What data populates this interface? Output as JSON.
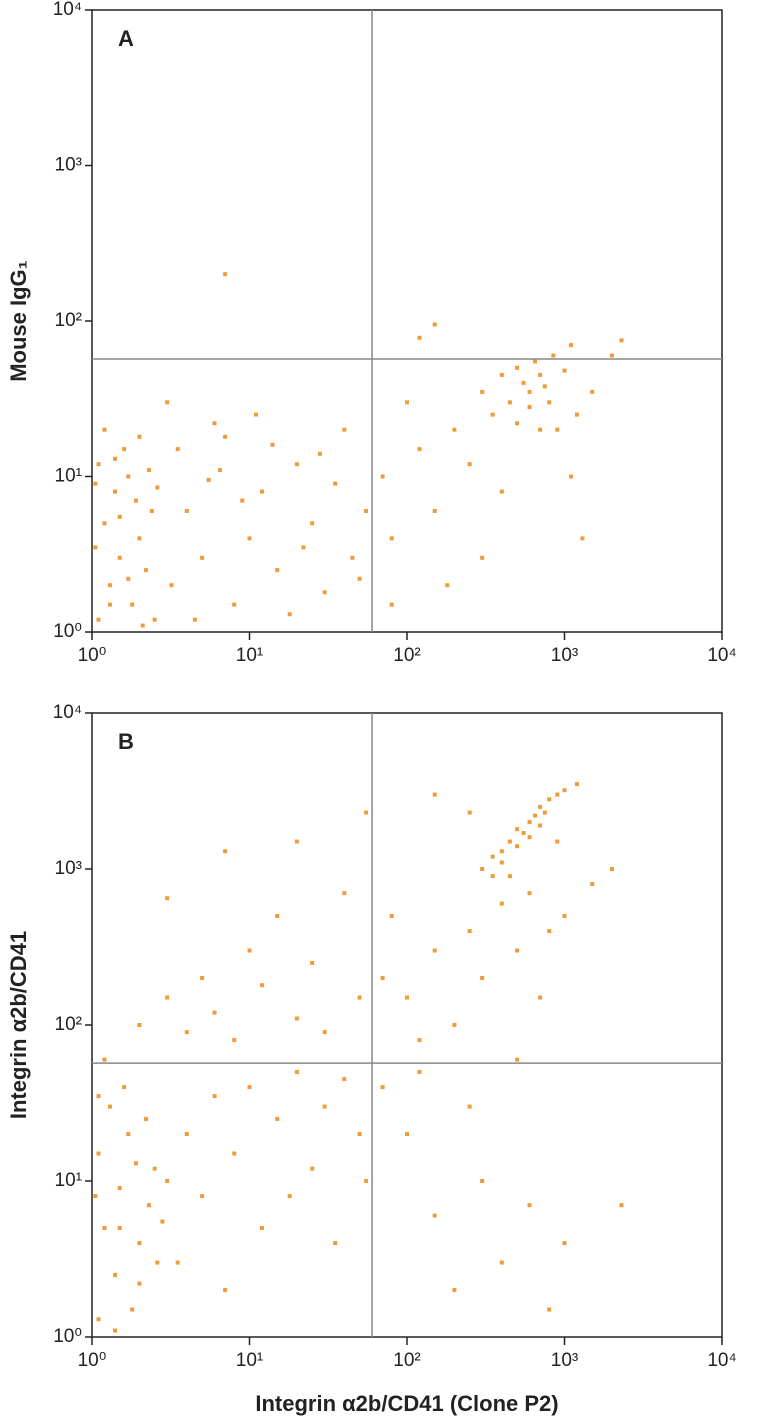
{
  "chart_data": [
    {
      "type": "scatter",
      "title": "A",
      "ylabel": "Mouse IgG₁",
      "color": "#ef9b3a",
      "log_scale": true,
      "xlim": [
        1,
        10000
      ],
      "ylim": [
        1,
        10000
      ],
      "xticks": [
        {
          "value": 1,
          "label": "10⁰"
        },
        {
          "value": 10,
          "label": "10¹"
        },
        {
          "value": 100,
          "label": "10²"
        },
        {
          "value": 1000,
          "label": "10³"
        },
        {
          "value": 10000,
          "label": "10⁴"
        }
      ],
      "yticks": [
        {
          "value": 1,
          "label": "10⁰"
        },
        {
          "value": 10,
          "label": "10¹"
        },
        {
          "value": 100,
          "label": "10²"
        },
        {
          "value": 1000,
          "label": "10³"
        },
        {
          "value": 10000,
          "label": "10⁴"
        }
      ],
      "quadrant": {
        "x": 60,
        "y": 57
      },
      "x": [
        1.1,
        1.3,
        1.5,
        1.2,
        1.8,
        2,
        1.4,
        1.1,
        1.7,
        2.2,
        2.4,
        1.6,
        1.2,
        2,
        1.9,
        1.3,
        2.5,
        1.05,
        1.5,
        2.3,
        1.05,
        1.7,
        2.1,
        1.4,
        2.6,
        3.2,
        4,
        5,
        6.5,
        8,
        10,
        12,
        15,
        20,
        25,
        30,
        35,
        45,
        55,
        3.5,
        4.5,
        7,
        9,
        18,
        28,
        40,
        50,
        11,
        3,
        6,
        22,
        14,
        5.5,
        70,
        80,
        100,
        120,
        150,
        200,
        250,
        300,
        350,
        400,
        450,
        500,
        550,
        600,
        650,
        700,
        750,
        800,
        900,
        1000,
        1200,
        1500,
        2000,
        400,
        300,
        180,
        1100,
        1300,
        80,
        700,
        600,
        500,
        850,
        1100,
        7,
        150,
        2300,
        120
      ],
      "y": [
        1.2,
        2,
        3,
        5,
        1.5,
        4,
        8,
        12,
        10,
        2.5,
        6,
        15,
        20,
        18,
        7,
        1.5,
        1.2,
        3.5,
        5.5,
        11,
        9,
        2.2,
        1.1,
        13,
        8.5,
        2,
        6,
        3,
        11,
        1.5,
        4,
        8,
        2.5,
        12,
        5,
        1.8,
        9,
        3,
        6,
        15,
        1.2,
        18,
        7,
        1.3,
        14,
        20,
        2.2,
        25,
        30,
        22,
        3.5,
        16,
        9.5,
        10,
        4,
        30,
        15,
        6,
        20,
        12,
        35,
        25,
        45,
        30,
        50,
        40,
        35,
        55,
        45,
        38,
        30,
        20,
        48,
        25,
        35,
        60,
        8,
        3,
        2,
        10,
        4,
        1.5,
        20,
        28,
        22,
        60,
        70,
        200,
        95,
        75,
        78
      ]
    },
    {
      "type": "scatter",
      "title": "B",
      "ylabel": "Integrin α2b/CD41",
      "xlabel": "Integrin α2b/CD41 (Clone P2)",
      "color": "#ef9b3a",
      "log_scale": true,
      "xlim": [
        1,
        10000
      ],
      "ylim": [
        1,
        10000
      ],
      "xticks": [
        {
          "value": 1,
          "label": "10⁰"
        },
        {
          "value": 10,
          "label": "10¹"
        },
        {
          "value": 100,
          "label": "10²"
        },
        {
          "value": 1000,
          "label": "10³"
        },
        {
          "value": 10000,
          "label": "10⁴"
        }
      ],
      "yticks": [
        {
          "value": 1,
          "label": "10⁰"
        },
        {
          "value": 10,
          "label": "10¹"
        },
        {
          "value": 100,
          "label": "10²"
        },
        {
          "value": 1000,
          "label": "10³"
        },
        {
          "value": 10000,
          "label": "10⁴"
        }
      ],
      "quadrant": {
        "x": 60,
        "y": 57
      },
      "x": [
        1.1,
        1.4,
        1.8,
        1.2,
        2,
        1.5,
        2.3,
        1.1,
        1.7,
        2.5,
        1.3,
        2,
        2.6,
        1.6,
        1.2,
        1.9,
        1.05,
        2.2,
        1.4,
        2.8,
        1.1,
        1.5,
        3,
        4,
        5,
        6,
        8,
        10,
        12,
        15,
        20,
        25,
        30,
        40,
        50,
        3.5,
        7,
        18,
        35,
        55,
        2,
        3,
        4,
        5,
        6,
        8,
        10,
        12,
        15,
        20,
        25,
        30,
        40,
        50,
        55,
        7,
        3,
        20,
        300,
        350,
        400,
        450,
        500,
        550,
        600,
        650,
        700,
        800,
        900,
        1000,
        1200,
        500,
        600,
        400,
        450,
        700,
        350,
        750,
        70,
        80,
        100,
        120,
        150,
        200,
        250,
        300,
        400,
        500,
        600,
        700,
        800,
        1000,
        1500,
        2000,
        150,
        250,
        900,
        70,
        100,
        150,
        200,
        300,
        400,
        600,
        800,
        1000,
        2300,
        120,
        250,
        500
      ],
      "y": [
        1.3,
        2.5,
        1.5,
        5,
        4,
        9,
        7,
        15,
        20,
        12,
        30,
        2.2,
        3,
        40,
        60,
        13,
        8,
        25,
        1.1,
        5.5,
        35,
        5,
        10,
        20,
        8,
        35,
        15,
        40,
        5,
        25,
        50,
        12,
        30,
        45,
        20,
        3,
        2,
        8,
        4,
        10,
        100,
        150,
        90,
        200,
        120,
        80,
        300,
        180,
        500,
        110,
        250,
        90,
        700,
        150,
        2300,
        1300,
        650,
        1500,
        1000,
        1200,
        1300,
        1500,
        1800,
        1700,
        2000,
        2200,
        2500,
        2800,
        3000,
        3200,
        3500,
        1400,
        1600,
        1100,
        900,
        1900,
        900,
        2300,
        200,
        500,
        150,
        80,
        300,
        100,
        400,
        200,
        600,
        300,
        700,
        150,
        400,
        500,
        800,
        1000,
        3000,
        2300,
        1500,
        40,
        20,
        6,
        2,
        10,
        3,
        7,
        1.5,
        4,
        7,
        50,
        30,
        60
      ]
    }
  ]
}
